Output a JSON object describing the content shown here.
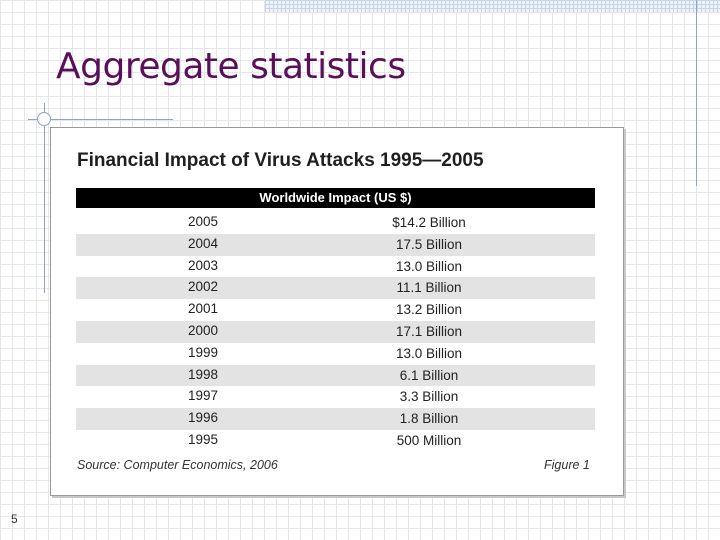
{
  "slide": {
    "title": "Aggregate statistics",
    "number": "5"
  },
  "figure": {
    "title": "Financial Impact of Virus Attacks 1995—2005",
    "table_header": "Worldwide Impact (US $)",
    "rows": [
      {
        "year": "2005",
        "impact": "$14.2 Billion"
      },
      {
        "year": "2004",
        "impact": "17.5 Billion"
      },
      {
        "year": "2003",
        "impact": "13.0 Billion"
      },
      {
        "year": "2002",
        "impact": "11.1 Billion"
      },
      {
        "year": "2001",
        "impact": "13.2 Billion"
      },
      {
        "year": "2000",
        "impact": "17.1 Billion"
      },
      {
        "year": "1999",
        "impact": "13.0 Billion"
      },
      {
        "year": "1998",
        "impact": "6.1 Billion"
      },
      {
        "year": "1997",
        "impact": "3.3 Billion"
      },
      {
        "year": "1996",
        "impact": "1.8 Billion"
      },
      {
        "year": "1995",
        "impact": "500 Million"
      }
    ],
    "source": "Source: Computer Economics, 2006",
    "label": "Figure 1"
  }
}
